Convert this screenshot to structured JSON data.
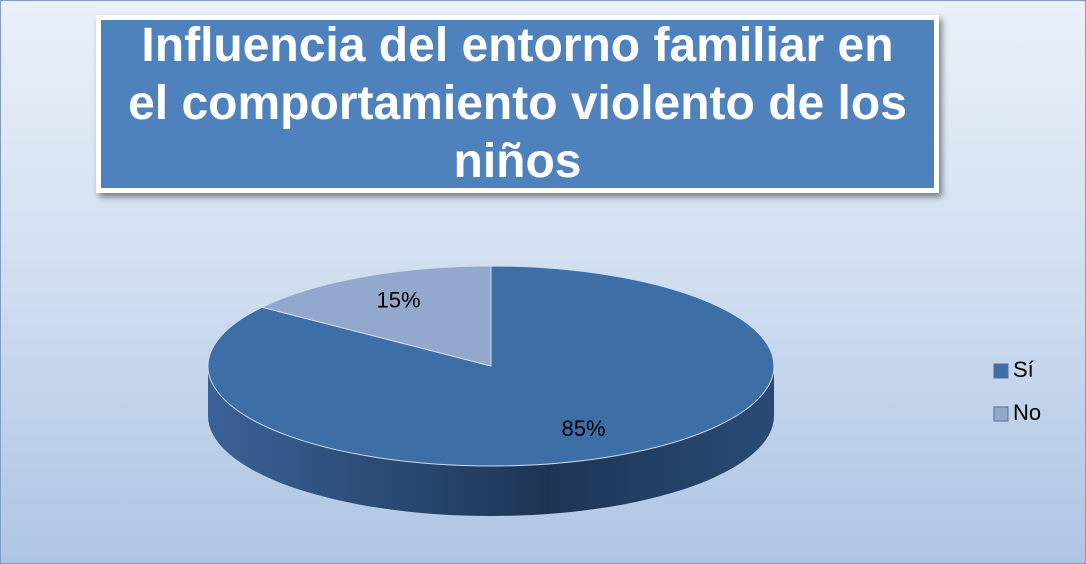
{
  "chart_data": {
    "type": "pie",
    "title": "Influencia del entorno familiar en el comportamiento violento de los niños",
    "categories": [
      "Sí",
      "No"
    ],
    "values": [
      85,
      15
    ],
    "value_labels": [
      "85%",
      "15%"
    ],
    "colors": [
      "#3e6ea6",
      "#93a8cd"
    ],
    "legend": "right"
  }
}
